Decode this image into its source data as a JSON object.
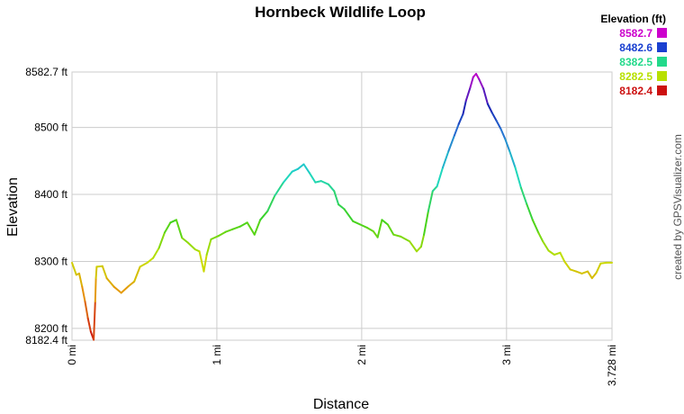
{
  "chart_data": {
    "type": "line",
    "title": "Hornbeck Wildlife Loop",
    "xlabel": "Distance",
    "ylabel": "Elevation",
    "xlim": [
      0,
      3.728
    ],
    "ylim": [
      8182.4,
      8582.7
    ],
    "grid": true,
    "x_ticks": [
      {
        "value": 0,
        "label": "0 mi"
      },
      {
        "value": 1,
        "label": "1 mi"
      },
      {
        "value": 2,
        "label": "2 mi"
      },
      {
        "value": 3,
        "label": "3 mi"
      },
      {
        "value": 3.728,
        "label": "3.728 mi"
      }
    ],
    "y_ticks": [
      {
        "value": 8182.4,
        "label": "8182.4 ft"
      },
      {
        "value": 8200,
        "label": "8200 ft"
      },
      {
        "value": 8300,
        "label": "8300 ft"
      },
      {
        "value": 8400,
        "label": "8400 ft"
      },
      {
        "value": 8500,
        "label": "8500 ft"
      },
      {
        "value": 8582.7,
        "label": "8582.7 ft"
      }
    ],
    "legend": {
      "title": "Elevation (ft)",
      "placement": "top-right",
      "entries": [
        {
          "label": "8582.7",
          "value": 8582.7,
          "color": "#cc00cc"
        },
        {
          "label": "8482.6",
          "value": 8482.6,
          "color": "#1a40d0"
        },
        {
          "label": "8382.5",
          "value": 8382.5,
          "color": "#22d98a"
        },
        {
          "label": "8282.5",
          "value": 8282.5,
          "color": "#b8e000"
        },
        {
          "label": "8182.4",
          "value": 8182.4,
          "color": "#cc1010"
        }
      ]
    },
    "series": [
      {
        "points": [
          [
            0.0,
            8298
          ],
          [
            0.03,
            8280
          ],
          [
            0.05,
            8282
          ],
          [
            0.07,
            8262
          ],
          [
            0.09,
            8240
          ],
          [
            0.11,
            8215
          ],
          [
            0.13,
            8195
          ],
          [
            0.15,
            8183
          ],
          [
            0.16,
            8240
          ],
          [
            0.165,
            8275
          ],
          [
            0.17,
            8292
          ],
          [
            0.21,
            8293
          ],
          [
            0.24,
            8275
          ],
          [
            0.29,
            8262
          ],
          [
            0.34,
            8253
          ],
          [
            0.39,
            8263
          ],
          [
            0.43,
            8270
          ],
          [
            0.47,
            8292
          ],
          [
            0.52,
            8298
          ],
          [
            0.56,
            8305
          ],
          [
            0.6,
            8320
          ],
          [
            0.64,
            8343
          ],
          [
            0.68,
            8358
          ],
          [
            0.72,
            8362
          ],
          [
            0.76,
            8335
          ],
          [
            0.8,
            8328
          ],
          [
            0.85,
            8318
          ],
          [
            0.88,
            8315
          ],
          [
            0.91,
            8285
          ],
          [
            0.93,
            8310
          ],
          [
            0.96,
            8333
          ],
          [
            1.01,
            8338
          ],
          [
            1.06,
            8344
          ],
          [
            1.11,
            8348
          ],
          [
            1.16,
            8352
          ],
          [
            1.21,
            8358
          ],
          [
            1.26,
            8340
          ],
          [
            1.3,
            8362
          ],
          [
            1.35,
            8375
          ],
          [
            1.4,
            8398
          ],
          [
            1.46,
            8418
          ],
          [
            1.52,
            8434
          ],
          [
            1.56,
            8438
          ],
          [
            1.6,
            8445
          ],
          [
            1.64,
            8432
          ],
          [
            1.68,
            8418
          ],
          [
            1.72,
            8420
          ],
          [
            1.77,
            8415
          ],
          [
            1.81,
            8405
          ],
          [
            1.84,
            8385
          ],
          [
            1.88,
            8378
          ],
          [
            1.94,
            8360
          ],
          [
            1.99,
            8355
          ],
          [
            2.04,
            8350
          ],
          [
            2.08,
            8345
          ],
          [
            2.11,
            8336
          ],
          [
            2.14,
            8362
          ],
          [
            2.18,
            8355
          ],
          [
            2.22,
            8340
          ],
          [
            2.27,
            8337
          ],
          [
            2.33,
            8330
          ],
          [
            2.38,
            8315
          ],
          [
            2.41,
            8322
          ],
          [
            2.43,
            8340
          ],
          [
            2.46,
            8375
          ],
          [
            2.49,
            8405
          ],
          [
            2.52,
            8412
          ],
          [
            2.56,
            8440
          ],
          [
            2.6,
            8465
          ],
          [
            2.64,
            8488
          ],
          [
            2.67,
            8505
          ],
          [
            2.7,
            8520
          ],
          [
            2.72,
            8540
          ],
          [
            2.75,
            8560
          ],
          [
            2.77,
            8575
          ],
          [
            2.79,
            8580
          ],
          [
            2.81,
            8572
          ],
          [
            2.84,
            8558
          ],
          [
            2.87,
            8535
          ],
          [
            2.9,
            8522
          ],
          [
            2.93,
            8510
          ],
          [
            2.96,
            8498
          ],
          [
            2.99,
            8483
          ],
          [
            3.02,
            8465
          ],
          [
            3.06,
            8440
          ],
          [
            3.1,
            8410
          ],
          [
            3.14,
            8385
          ],
          [
            3.18,
            8362
          ],
          [
            3.22,
            8343
          ],
          [
            3.25,
            8330
          ],
          [
            3.29,
            8316
          ],
          [
            3.33,
            8310
          ],
          [
            3.37,
            8313
          ],
          [
            3.4,
            8300
          ],
          [
            3.44,
            8288
          ],
          [
            3.48,
            8285
          ],
          [
            3.52,
            8282
          ],
          [
            3.56,
            8285
          ],
          [
            3.59,
            8275
          ],
          [
            3.62,
            8283
          ],
          [
            3.65,
            8297
          ],
          [
            3.69,
            8298
          ],
          [
            3.728,
            8298
          ]
        ]
      }
    ]
  },
  "credit": "created by GPSVisualizer.com"
}
